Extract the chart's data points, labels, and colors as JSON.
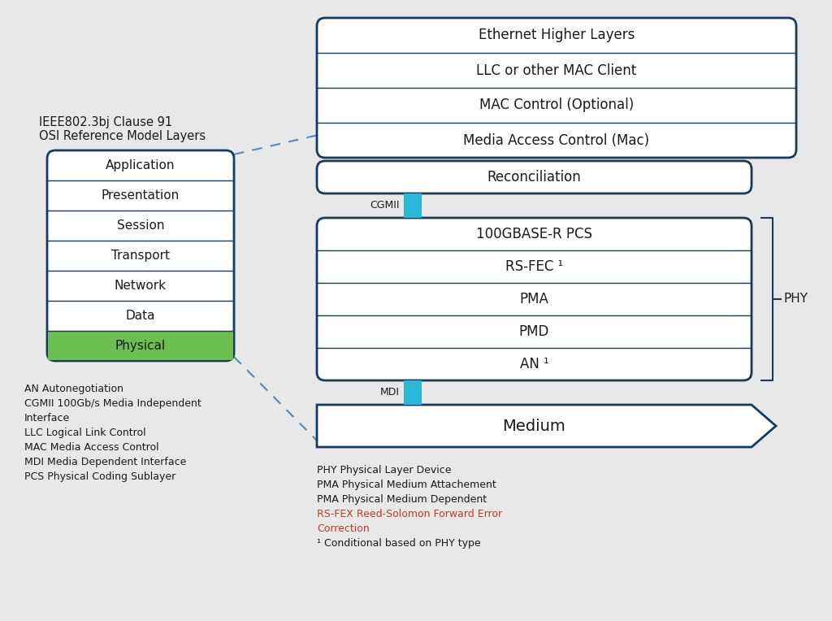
{
  "bg_color": "#e8e8e8",
  "box_color": "#ffffff",
  "border_color": "#1a3a5c",
  "text_color": "#1a1a1a",
  "cyan_color": "#29b6d8",
  "green_color": "#6bbf4e",
  "title_text": "IEEE802.3bj Clause 91\nOSI Reference Model Layers",
  "osi_layers_top_to_bottom": [
    "Application",
    "Presentation",
    "Session",
    "Transport",
    "Network",
    "Data",
    "Physical"
  ],
  "right_upper_layers_top_to_bottom": [
    "Ethernet Higher Layers",
    "LLC or other MAC Client",
    "MAC Control (Optional)",
    "Media Access Control (Mac)"
  ],
  "reconciliation_text": "Reconciliation",
  "cgmii_label": "CGMII",
  "phy_inner_layers_top_to_bottom": [
    "100GBASE-R PCS",
    "RS-FEC ¹",
    "PMA",
    "PMD",
    "AN ¹"
  ],
  "mdi_label": "MDI",
  "medium_text": "Medium",
  "phy_label": "PHY",
  "legend_left": [
    "AN Autonegotiation",
    "CGMII 100Gb/s Media Independent\nInterface",
    "LLC Logical Link Control",
    "MAC Media Access Control",
    "MDI Media Dependent Interface",
    "PCS Physical Coding Sublayer"
  ],
  "legend_right": [
    {
      "text": "PHY Physical Layer Device",
      "color": "#1a1a1a"
    },
    {
      "text": "PMA Physical Medium Attachement",
      "color": "#1a1a1a"
    },
    {
      "text": "PMA Physical Medium Dependent",
      "color": "#1a1a1a"
    },
    {
      "text": "RS-FEX Reed-Solomon Forward Error\nCorrection",
      "color": "#c0392b"
    },
    {
      "text": "¹ Conditional based on PHY type",
      "color": "#1a1a1a"
    }
  ]
}
